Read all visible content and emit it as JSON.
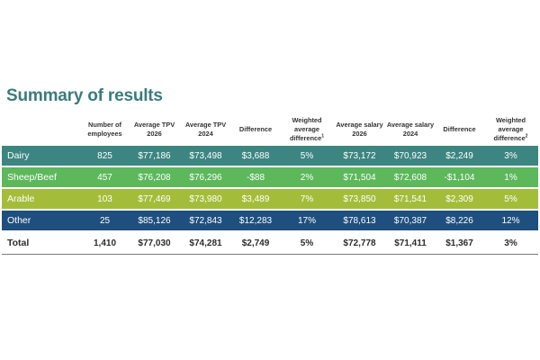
{
  "title": "Summary of results",
  "headers": [
    "",
    "Number of employees",
    "Average TPV 2026",
    "Average TPV 2024",
    "Difference",
    "Weighted average difference",
    "Average salary 2026",
    "Average salary 2024",
    "Difference",
    "Weighted average difference"
  ],
  "footnote_marks": [
    "1",
    "2"
  ],
  "rows": [
    {
      "key": "dairy",
      "cells": [
        "Dairy",
        "825",
        "$77,186",
        "$73,498",
        "$3,688",
        "5%",
        "$73,172",
        "$70,923",
        "$2,249",
        "3%"
      ],
      "color": "#3d8581"
    },
    {
      "key": "sheep",
      "cells": [
        "Sheep/Beef",
        "457",
        "$76,208",
        "$76,296",
        "-$88",
        "2%",
        "$71,504",
        "$72,608",
        "-$1,104",
        "1%"
      ],
      "color": "#5cb85b"
    },
    {
      "key": "arable",
      "cells": [
        "Arable",
        "103",
        "$77,469",
        "$73,980",
        "$3,489",
        "7%",
        "$73,850",
        "$71,541",
        "$2,309",
        "5%"
      ],
      "color": "#a3bd3b"
    },
    {
      "key": "other",
      "cells": [
        "Other",
        "25",
        "$85,126",
        "$72,843",
        "$12,283",
        "17%",
        "$78,613",
        "$70,387",
        "$8,226",
        "12%"
      ],
      "color": "#1f4f7e"
    },
    {
      "key": "total",
      "cells": [
        "Total",
        "1,410",
        "$77,030",
        "$74,281",
        "$2,749",
        "5%",
        "$72,778",
        "$71,411",
        "$1,367",
        "3%"
      ],
      "color": "#ffffff"
    }
  ]
}
